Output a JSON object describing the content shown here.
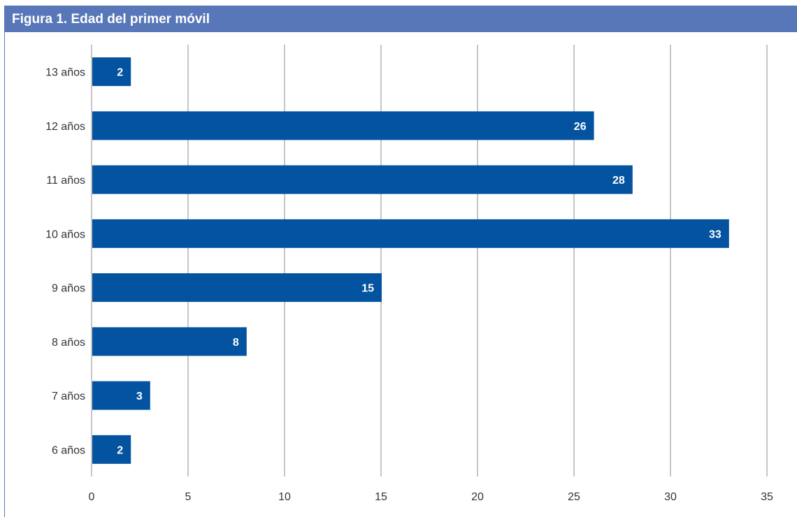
{
  "figure": {
    "number": "Figura 1.",
    "title": "Edad del primer móvil"
  },
  "chart_data": {
    "type": "bar",
    "orientation": "horizontal",
    "title": "Figura 1. Edad del primer móvil",
    "categories": [
      "13 años",
      "12 años",
      "11 años",
      "10 años",
      "9 años",
      "8 años",
      "7 años",
      "6 años"
    ],
    "values": [
      2,
      26,
      28,
      33,
      15,
      8,
      3,
      2
    ],
    "data_labels": [
      "2",
      "26",
      "28",
      "33",
      "15",
      "8",
      "3",
      "2"
    ],
    "xlim": [
      0,
      35
    ],
    "x_ticks": [
      0,
      5,
      10,
      15,
      20,
      25,
      30,
      35
    ],
    "x_tick_labels": [
      "0",
      "5",
      "10",
      "15",
      "20",
      "25",
      "30",
      "35"
    ],
    "grid": "vertical",
    "legend": "none",
    "bar_color": "#0453a0",
    "grid_color": "#8c8c8c"
  }
}
